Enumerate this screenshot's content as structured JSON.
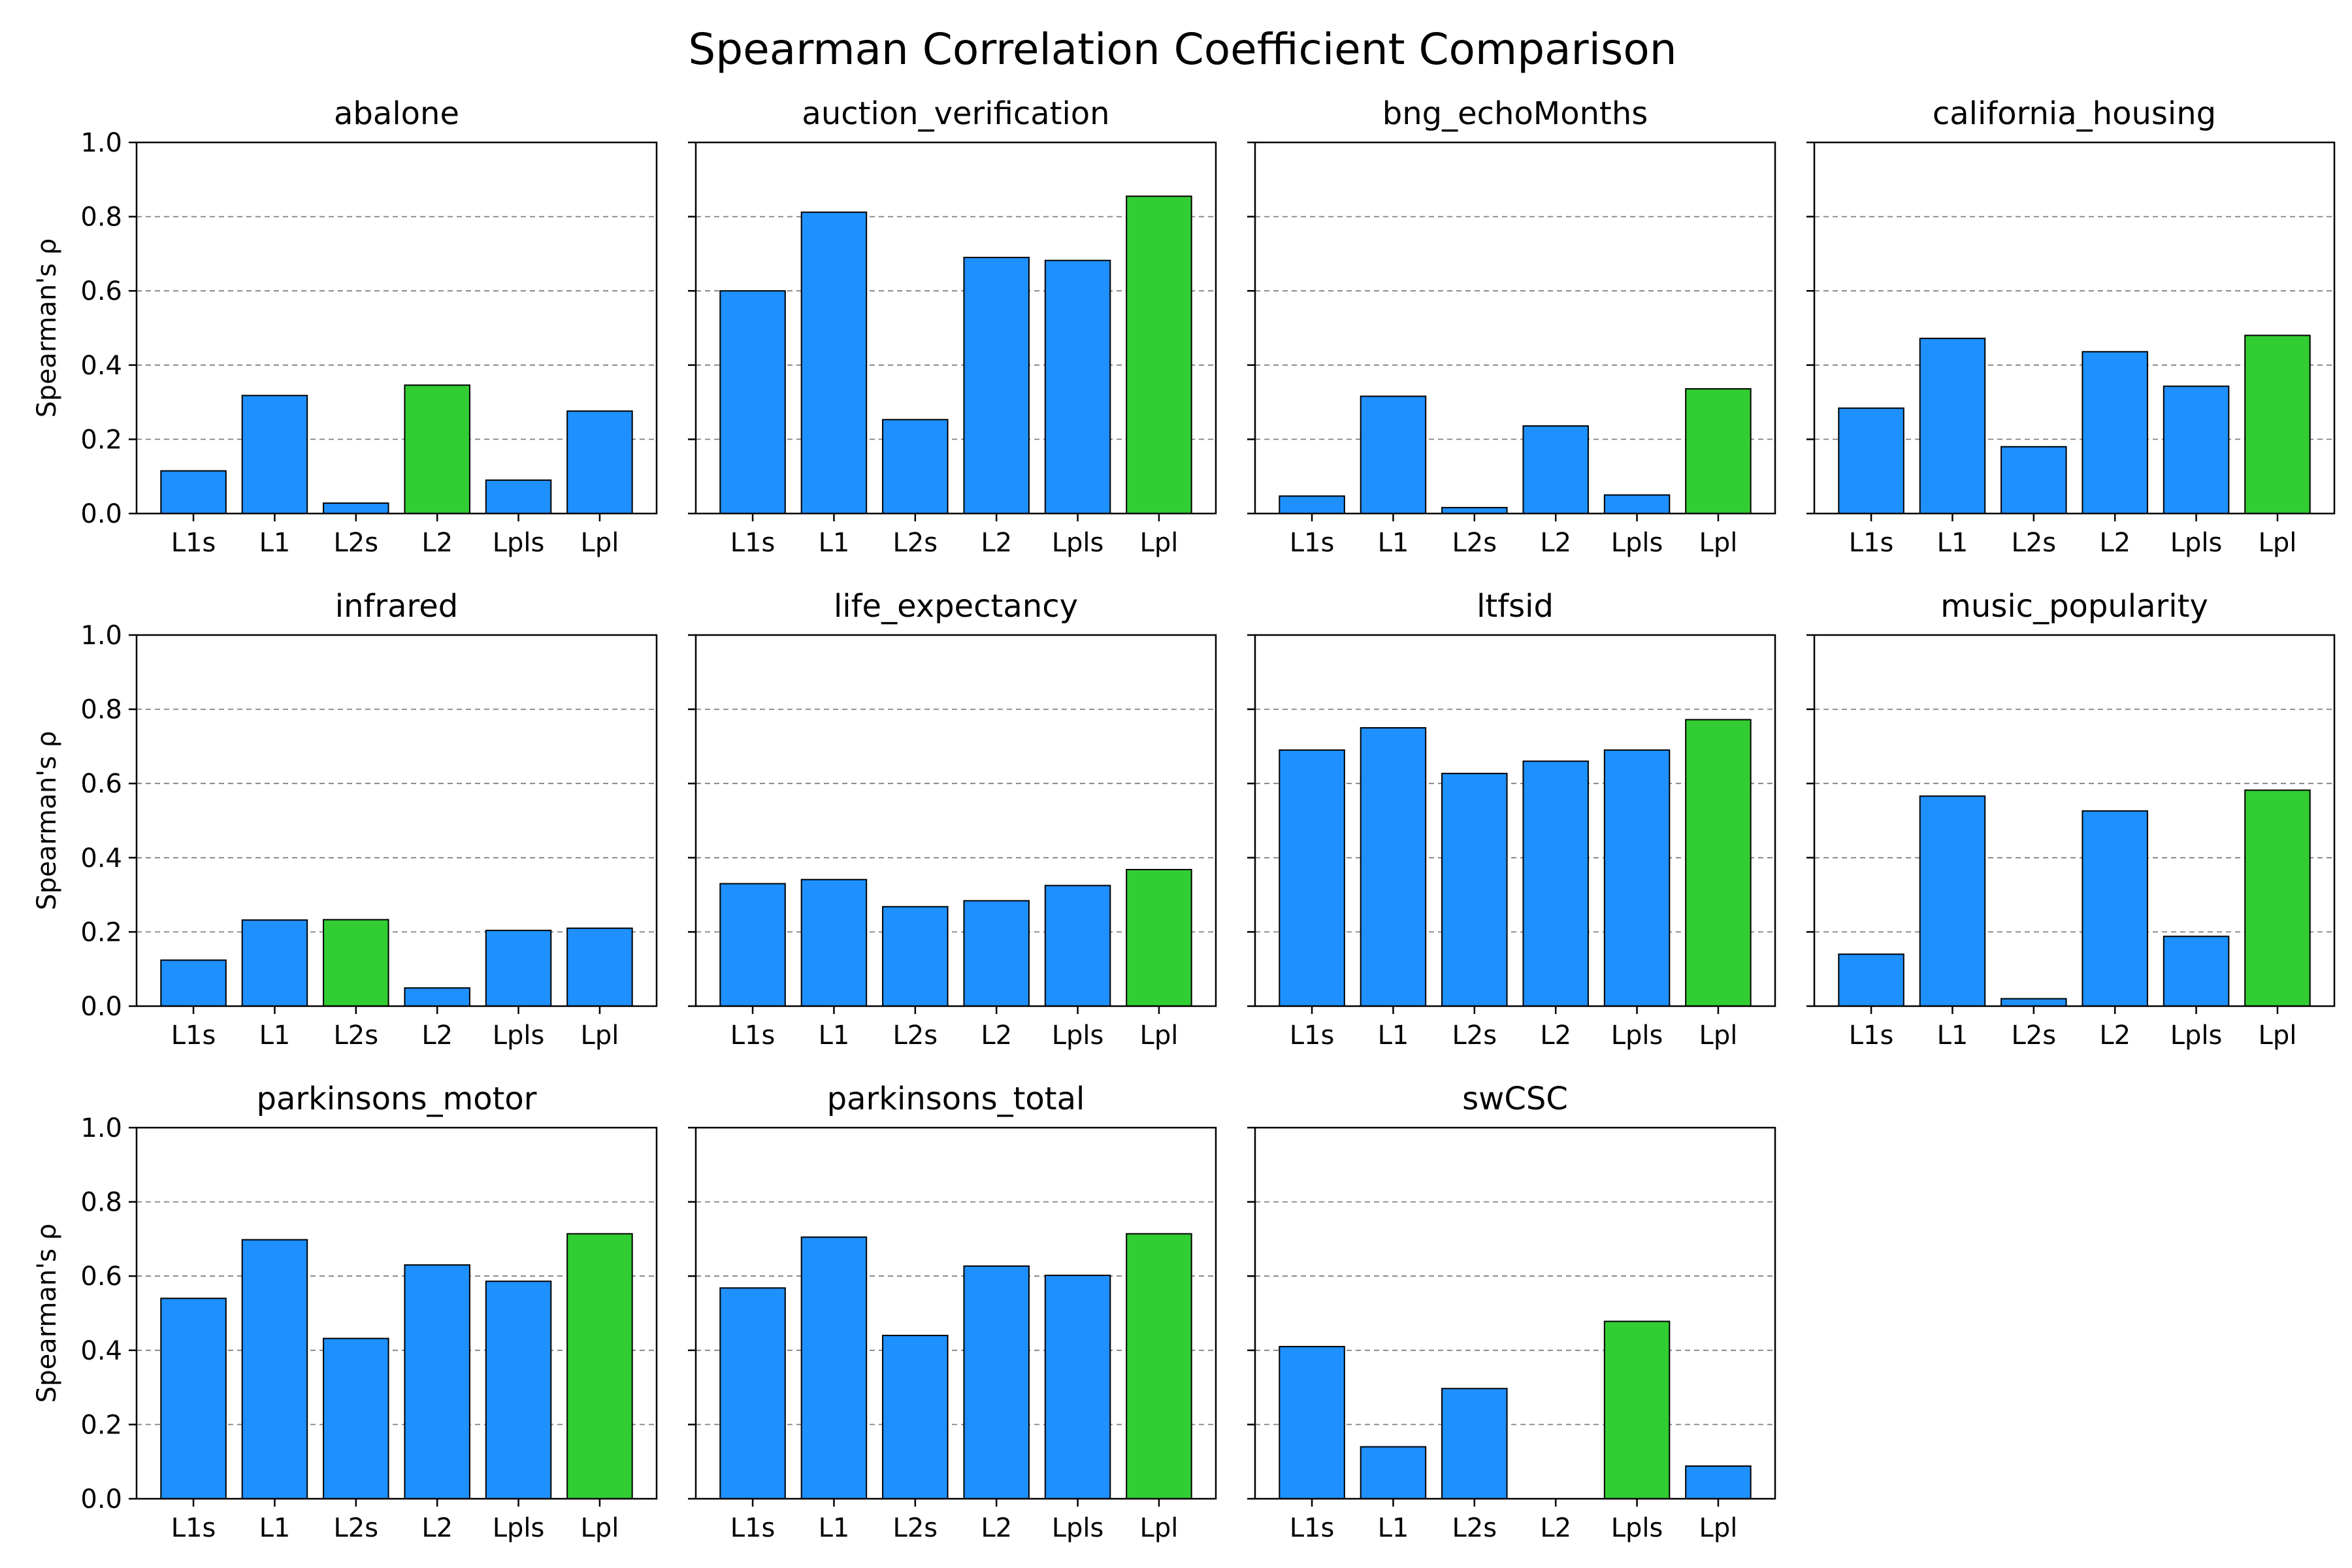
{
  "chart_data": {
    "type": "bar",
    "title": "Spearman Correlation Coefficient Comparison",
    "ylabel": "Spearman's ρ",
    "ylim": [
      0,
      1.0
    ],
    "yticks": [
      "0.0",
      "0.2",
      "0.4",
      "0.6",
      "0.8",
      "1.0"
    ],
    "grid": "y dashed",
    "categories": [
      "L1s",
      "L1",
      "L2s",
      "L2",
      "Lpls",
      "Lpl"
    ],
    "colors": {
      "default": "#1e90ff",
      "best": "#32cd32"
    },
    "panels": [
      {
        "title": "abalone",
        "values": [
          0.115,
          0.318,
          0.028,
          0.346,
          0.09,
          0.276
        ],
        "best_index": 3
      },
      {
        "title": "auction_verification",
        "values": [
          0.6,
          0.812,
          0.253,
          0.69,
          0.682,
          0.855
        ],
        "best_index": 5
      },
      {
        "title": "bng_echoMonths",
        "values": [
          0.047,
          0.316,
          0.016,
          0.236,
          0.05,
          0.336
        ],
        "best_index": 5
      },
      {
        "title": "california_housing",
        "values": [
          0.284,
          0.472,
          0.18,
          0.436,
          0.343,
          0.48
        ],
        "best_index": 5
      },
      {
        "title": "infrared",
        "values": [
          0.124,
          0.232,
          0.233,
          0.049,
          0.204,
          0.21
        ],
        "best_index": 2
      },
      {
        "title": "life_expectancy",
        "values": [
          0.33,
          0.341,
          0.268,
          0.284,
          0.325,
          0.368
        ],
        "best_index": 5
      },
      {
        "title": "ltfsid",
        "values": [
          0.69,
          0.75,
          0.627,
          0.66,
          0.69,
          0.772
        ],
        "best_index": 5
      },
      {
        "title": "music_popularity",
        "values": [
          0.14,
          0.566,
          0.02,
          0.526,
          0.188,
          0.582
        ],
        "best_index": 5
      },
      {
        "title": "parkinsons_motor",
        "values": [
          0.54,
          0.698,
          0.432,
          0.63,
          0.586,
          0.714
        ],
        "best_index": 5
      },
      {
        "title": "parkinsons_total",
        "values": [
          0.568,
          0.705,
          0.44,
          0.627,
          0.602,
          0.714
        ],
        "best_index": 5
      },
      {
        "title": "swCSC",
        "values": [
          0.41,
          0.14,
          0.297,
          0.0,
          0.478,
          0.088
        ],
        "best_index": 4
      }
    ]
  }
}
